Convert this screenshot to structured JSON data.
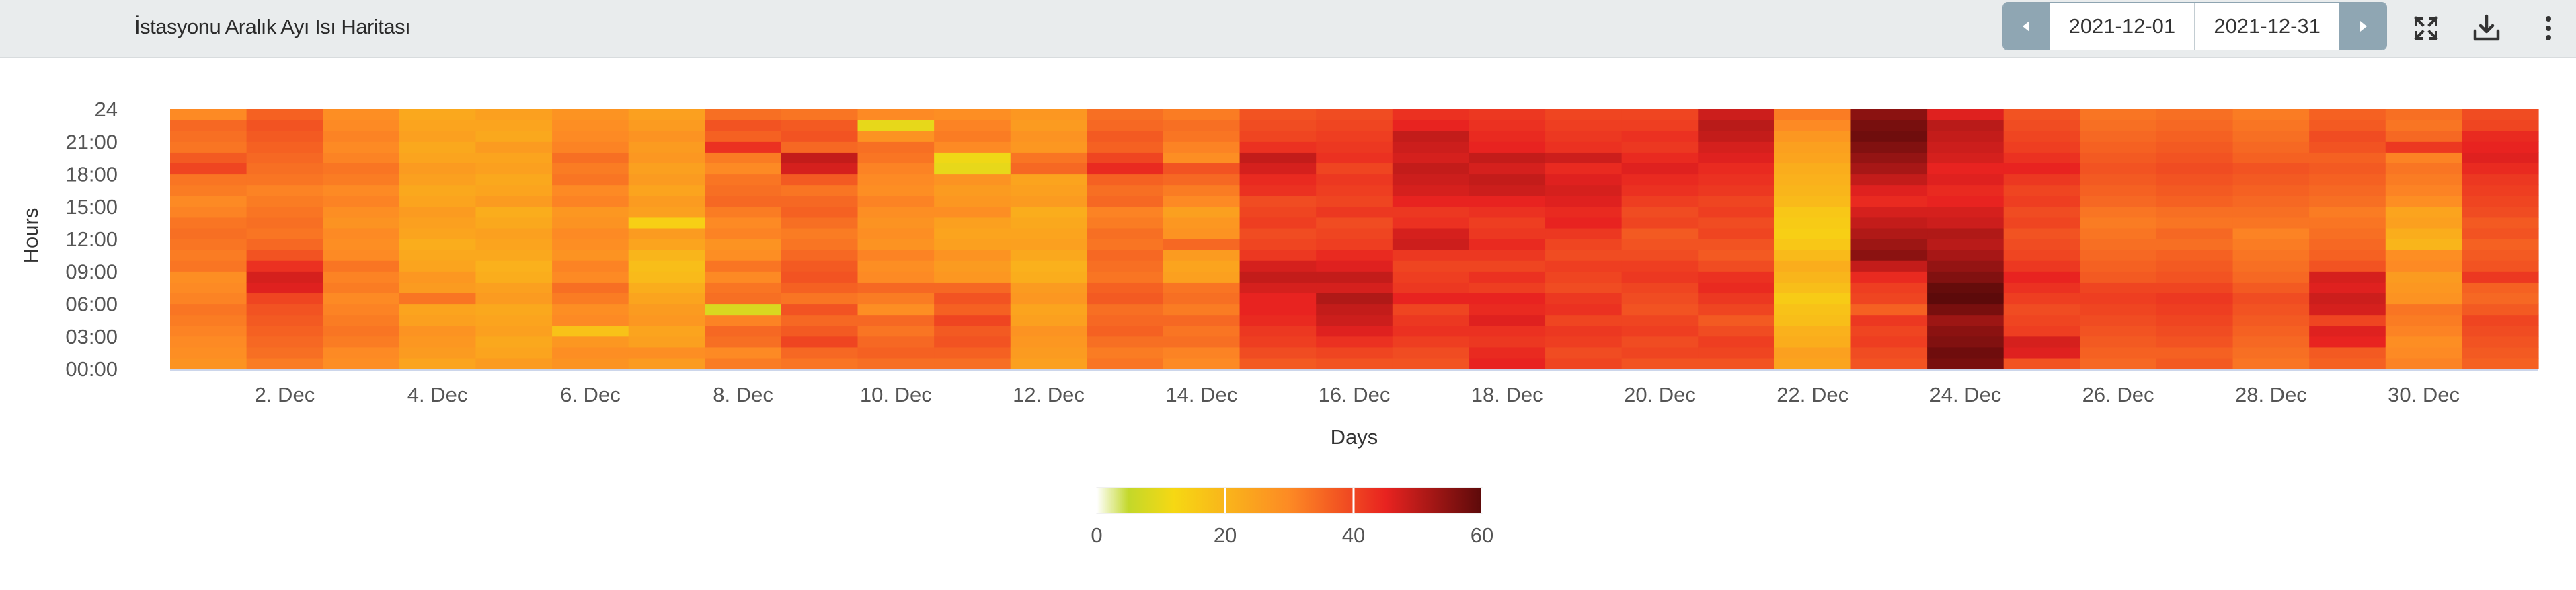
{
  "header": {
    "title": "İstasyonu Aralık Ayı Isı Haritası",
    "date_start": "2021-12-01",
    "date_end": "2021-12-31",
    "prev_icon": "chevron-left-icon",
    "next_icon": "chevron-right-icon",
    "fullscreen_icon": "fullscreen-icon",
    "download_icon": "download-icon",
    "menu_icon": "more-vertical-icon"
  },
  "chart_data": {
    "type": "heatmap",
    "title": "İstasyonu Aralık Ayı Isı Haritası",
    "xlabel": "Days",
    "ylabel": "Hours",
    "x_ticks": [
      "2. Dec",
      "4. Dec",
      "6. Dec",
      "8. Dec",
      "10. Dec",
      "12. Dec",
      "14. Dec",
      "16. Dec",
      "18. Dec",
      "20. Dec",
      "22. Dec",
      "24. Dec",
      "26. Dec",
      "28. Dec",
      "30. Dec"
    ],
    "y_ticks": [
      "00:00",
      "03:00",
      "06:00",
      "09:00",
      "12:00",
      "15:00",
      "18:00",
      "21:00",
      "24"
    ],
    "color_scale": {
      "min": 0,
      "max": 60,
      "ticks": [
        "0",
        "20",
        "40",
        "60"
      ],
      "stops": [
        {
          "value": 0,
          "color": "#ffffff"
        },
        {
          "value": 5,
          "color": "#c3d82a"
        },
        {
          "value": 12,
          "color": "#f6d813"
        },
        {
          "value": 30,
          "color": "#fd8a24"
        },
        {
          "value": 45,
          "color": "#e82320"
        },
        {
          "value": 60,
          "color": "#5c0a0a"
        }
      ]
    },
    "days": [
      {
        "day": 1,
        "base": 31,
        "profile": [
          28,
          29,
          30,
          31,
          32,
          33,
          31,
          30,
          29,
          33,
          32,
          33,
          34,
          33,
          31,
          30,
          32,
          33,
          40,
          37,
          33,
          34,
          35,
          30
        ]
      },
      {
        "day": 2,
        "base": 36,
        "profile": [
          32,
          34,
          35,
          36,
          37,
          38,
          40,
          46,
          47,
          43,
          38,
          35,
          33,
          34,
          33,
          32,
          31,
          33,
          34,
          35,
          36,
          37,
          38,
          36
        ]
      },
      {
        "day": 3,
        "base": 31,
        "profile": [
          29,
          30,
          32,
          33,
          32,
          31,
          30,
          32,
          31,
          33,
          30,
          29,
          30,
          28,
          29,
          31,
          30,
          32,
          33,
          31,
          30,
          31,
          30,
          29
        ]
      },
      {
        "day": 4,
        "base": 26,
        "profile": [
          24,
          26,
          27,
          28,
          25,
          24,
          33,
          26,
          27,
          24,
          23,
          22,
          24,
          25,
          26,
          24,
          23,
          25,
          26,
          24,
          23,
          25,
          24,
          23
        ]
      },
      {
        "day": 5,
        "base": 25,
        "profile": [
          26,
          24,
          23,
          25,
          24,
          23,
          26,
          25,
          22,
          21,
          23,
          24,
          25,
          23,
          22,
          26,
          24,
          23,
          25,
          24,
          26,
          23,
          24,
          25
        ]
      },
      {
        "day": 6,
        "base": 30,
        "profile": [
          28,
          29,
          27,
          17,
          30,
          29,
          32,
          34,
          30,
          31,
          28,
          29,
          30,
          28,
          27,
          31,
          30,
          33,
          32,
          34,
          31,
          30,
          29,
          28
        ]
      },
      {
        "day": 7,
        "base": 27,
        "profile": [
          26,
          29,
          25,
          24,
          27,
          26,
          24,
          22,
          19,
          18,
          20,
          24,
          26,
          14,
          25,
          26,
          24,
          26,
          25,
          27,
          26,
          28,
          26,
          25
        ]
      },
      {
        "day": 8,
        "base": 33,
        "profile": [
          32,
          30,
          34,
          35,
          31,
          8,
          34,
          33,
          30,
          33,
          29,
          28,
          31,
          30,
          32,
          35,
          34,
          33,
          30,
          32,
          43,
          36,
          38,
          34
        ]
      },
      {
        "day": 9,
        "base": 36,
        "profile": [
          33,
          35,
          40,
          37,
          35,
          38,
          33,
          36,
          38,
          37,
          35,
          33,
          32,
          34,
          36,
          35,
          33,
          37,
          47,
          49,
          35,
          38,
          37,
          33
        ]
      },
      {
        "day": 10,
        "base": 30,
        "profile": [
          34,
          36,
          35,
          33,
          35,
          29,
          32,
          35,
          30,
          29,
          31,
          28,
          29,
          28,
          29,
          31,
          29,
          30,
          31,
          33,
          34,
          28,
          10,
          30
        ]
      },
      {
        "day": 11,
        "base": 31,
        "profile": [
          34,
          36,
          38,
          37,
          40,
          36,
          38,
          35,
          27,
          26,
          28,
          25,
          24,
          25,
          29,
          27,
          26,
          28,
          10,
          11,
          30,
          32,
          31,
          29
        ]
      },
      {
        "day": 12,
        "base": 27,
        "profile": [
          25,
          26,
          27,
          28,
          25,
          24,
          27,
          26,
          22,
          21,
          23,
          25,
          24,
          23,
          22,
          26,
          25,
          24,
          35,
          33,
          27,
          28,
          26,
          27
        ]
      },
      {
        "day": 13,
        "base": 34,
        "profile": [
          33,
          32,
          34,
          36,
          35,
          34,
          37,
          36,
          33,
          34,
          35,
          33,
          34,
          32,
          31,
          35,
          34,
          36,
          44,
          40,
          36,
          37,
          35,
          34
        ]
      },
      {
        "day": 14,
        "base": 32,
        "profile": [
          30,
          31,
          34,
          33,
          35,
          32,
          34,
          33,
          25,
          24,
          26,
          35,
          28,
          27,
          25,
          30,
          32,
          35,
          38,
          29,
          31,
          33,
          34,
          32
        ]
      },
      {
        "day": 15,
        "base": 40,
        "profile": [
          37,
          39,
          41,
          42,
          44,
          45,
          45,
          47,
          49,
          47,
          42,
          40,
          39,
          41,
          40,
          39,
          43,
          44,
          47,
          49,
          43,
          40,
          39,
          38
        ]
      },
      {
        "day": 16,
        "base": 41,
        "profile": [
          38,
          40,
          43,
          46,
          48,
          49,
          51,
          47,
          49,
          46,
          44,
          41,
          40,
          39,
          42,
          40,
          41,
          42,
          40,
          43,
          42,
          41,
          40,
          39
        ]
      },
      {
        "day": 17,
        "base": 41,
        "profile": [
          38,
          39,
          41,
          43,
          42,
          40,
          45,
          42,
          41,
          40,
          42,
          48,
          47,
          43,
          42,
          45,
          47,
          48,
          49,
          47,
          48,
          49,
          45,
          43
        ]
      },
      {
        "day": 18,
        "base": 43,
        "profile": [
          45,
          44,
          42,
          43,
          46,
          44,
          45,
          41,
          43,
          40,
          42,
          44,
          42,
          41,
          43,
          45,
          48,
          49,
          47,
          49,
          45,
          44,
          43,
          42
        ]
      },
      {
        "day": 19,
        "base": 41,
        "profile": [
          40,
          39,
          41,
          42,
          40,
          43,
          42,
          39,
          40,
          41,
          39,
          40,
          42,
          45,
          44,
          46,
          47,
          46,
          44,
          48,
          43,
          42,
          41,
          40
        ]
      },
      {
        "day": 20,
        "base": 40,
        "profile": [
          38,
          40,
          39,
          41,
          40,
          38,
          39,
          40,
          42,
          41,
          39,
          38,
          37,
          40,
          39,
          41,
          43,
          44,
          46,
          44,
          42,
          43,
          41,
          40
        ]
      },
      {
        "day": 21,
        "base": 40,
        "profile": [
          38,
          40,
          41,
          39,
          37,
          40,
          42,
          44,
          43,
          39,
          37,
          38,
          40,
          39,
          41,
          40,
          42,
          43,
          44,
          46,
          47,
          49,
          50,
          48
        ]
      },
      {
        "day": 22,
        "base": 20,
        "profile": [
          24,
          25,
          22,
          21,
          18,
          17,
          15,
          18,
          20,
          22,
          19,
          16,
          14,
          15,
          16,
          19,
          20,
          21,
          22,
          24,
          25,
          27,
          30,
          32
        ]
      },
      {
        "day": 23,
        "base": 45,
        "profile": [
          38,
          39,
          41,
          40,
          42,
          36,
          40,
          41,
          44,
          49,
          55,
          53,
          51,
          49,
          47,
          44,
          46,
          49,
          52,
          54,
          56,
          58,
          57,
          55
        ]
      },
      {
        "day": 24,
        "base": 48,
        "profile": [
          57,
          58,
          56,
          55,
          53,
          57,
          60,
          59,
          56,
          54,
          52,
          50,
          51,
          48,
          47,
          45,
          44,
          46,
          45,
          47,
          48,
          49,
          50,
          46
        ]
      },
      {
        "day": 25,
        "base": 40,
        "profile": [
          38,
          46,
          47,
          41,
          40,
          39,
          41,
          43,
          45,
          42,
          40,
          39,
          38,
          40,
          39,
          41,
          40,
          42,
          45,
          43,
          41,
          40,
          39,
          38
        ]
      },
      {
        "day": 26,
        "base": 37,
        "profile": [
          35,
          36,
          37,
          38,
          39,
          40,
          41,
          40,
          37,
          36,
          35,
          34,
          33,
          32,
          33,
          35,
          36,
          37,
          38,
          37,
          36,
          35,
          34,
          33
        ]
      },
      {
        "day": 27,
        "base": 38,
        "profile": [
          37,
          36,
          38,
          39,
          40,
          41,
          42,
          40,
          38,
          37,
          36,
          34,
          35,
          33,
          34,
          36,
          37,
          38,
          39,
          38,
          37,
          36,
          35,
          34
        ]
      },
      {
        "day": 28,
        "base": 35,
        "profile": [
          33,
          34,
          35,
          36,
          37,
          38,
          39,
          37,
          35,
          34,
          33,
          32,
          31,
          33,
          34,
          35,
          36,
          37,
          38,
          36,
          35,
          34,
          33,
          32
        ]
      },
      {
        "day": 29,
        "base": 38,
        "profile": [
          36,
          37,
          45,
          46,
          40,
          47,
          48,
          46,
          47,
          38,
          36,
          35,
          34,
          33,
          32,
          34,
          35,
          36,
          37,
          36,
          38,
          39,
          37,
          36
        ]
      },
      {
        "day": 30,
        "base": 32,
        "profile": [
          31,
          30,
          29,
          31,
          32,
          33,
          28,
          27,
          26,
          30,
          29,
          20,
          22,
          25,
          24,
          29,
          31,
          32,
          33,
          31,
          42,
          35,
          33,
          34
        ]
      },
      {
        "day": 31,
        "base": 38,
        "profile": [
          36,
          37,
          38,
          39,
          40,
          37,
          35,
          36,
          42,
          38,
          37,
          36,
          38,
          37,
          39,
          40,
          41,
          42,
          44,
          46,
          45,
          44,
          40,
          39
        ]
      }
    ]
  }
}
